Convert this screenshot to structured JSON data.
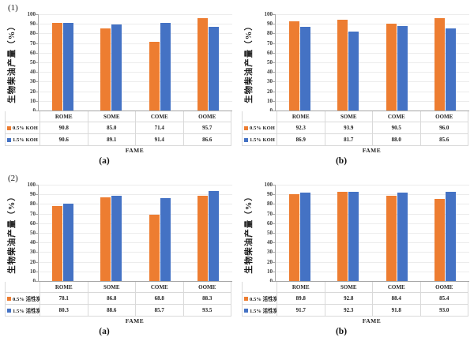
{
  "figure": {
    "background": "#ffffff",
    "axis_color": "#a6a6a6",
    "grid_color": "#ececec",
    "table_border_color": "#d9d9d9",
    "series_colors": {
      "orange": "#ED7D31",
      "blue": "#4472C4"
    }
  },
  "chart_data": [
    {
      "type": "bar",
      "panel_label": "(1)",
      "caption": "(a)",
      "ylabel": "生物柴油产量（%）",
      "xlabel": "FAME",
      "ylim": [
        0,
        100
      ],
      "ytick_step": 10,
      "grid": true,
      "legend_position": "table-left",
      "categories": [
        "ROME",
        "SOME",
        "COME",
        "OOME"
      ],
      "series": [
        {
          "name": "0.5% KOH",
          "color": "#ED7D31",
          "values": [
            90.8,
            85.0,
            71.4,
            95.7
          ]
        },
        {
          "name": "1.5% KOH",
          "color": "#4472C4",
          "values": [
            90.6,
            89.1,
            91.4,
            86.6
          ]
        }
      ]
    },
    {
      "type": "bar",
      "panel_label": "",
      "caption": "(b)",
      "ylabel": "生物柴油产量（%）",
      "xlabel": "FAME",
      "ylim": [
        0,
        100
      ],
      "ytick_step": 10,
      "grid": true,
      "legend_position": "table-left",
      "categories": [
        "ROME",
        "SOME",
        "COME",
        "OOME"
      ],
      "series": [
        {
          "name": "0.5% KOH",
          "color": "#ED7D31",
          "values": [
            92.3,
            93.9,
            90.5,
            96.0
          ]
        },
        {
          "name": "1.5% KOH",
          "color": "#4472C4",
          "values": [
            86.9,
            81.7,
            88.0,
            85.6
          ]
        }
      ]
    },
    {
      "type": "bar",
      "panel_label": "(2)",
      "caption": "(a)",
      "ylabel": "生物柴油产量（%）",
      "xlabel": "FAME",
      "ylim": [
        0,
        100
      ],
      "ytick_step": 10,
      "grid": true,
      "legend_position": "table-left",
      "categories": [
        "ROME",
        "SOME",
        "COME",
        "OOME"
      ],
      "series": [
        {
          "name": "0.5% 活性炭",
          "color": "#ED7D31",
          "values": [
            78.1,
            86.8,
            68.8,
            88.3
          ]
        },
        {
          "name": "1.5% 活性炭",
          "color": "#4472C4",
          "values": [
            80.3,
            88.6,
            85.7,
            93.5
          ]
        }
      ]
    },
    {
      "type": "bar",
      "panel_label": "",
      "caption": "(b)",
      "ylabel": "生物柴油产量（%）",
      "xlabel": "FAME",
      "ylim": [
        0,
        100
      ],
      "ytick_step": 10,
      "grid": true,
      "legend_position": "table-left",
      "categories": [
        "ROME",
        "SOME",
        "COME",
        "OOME"
      ],
      "series": [
        {
          "name": "0.5% 活性炭",
          "color": "#ED7D31",
          "values": [
            89.8,
            92.8,
            88.4,
            85.4
          ]
        },
        {
          "name": "1.5% 活性炭",
          "color": "#4472C4",
          "values": [
            91.7,
            92.3,
            91.8,
            93.0
          ]
        }
      ]
    }
  ]
}
